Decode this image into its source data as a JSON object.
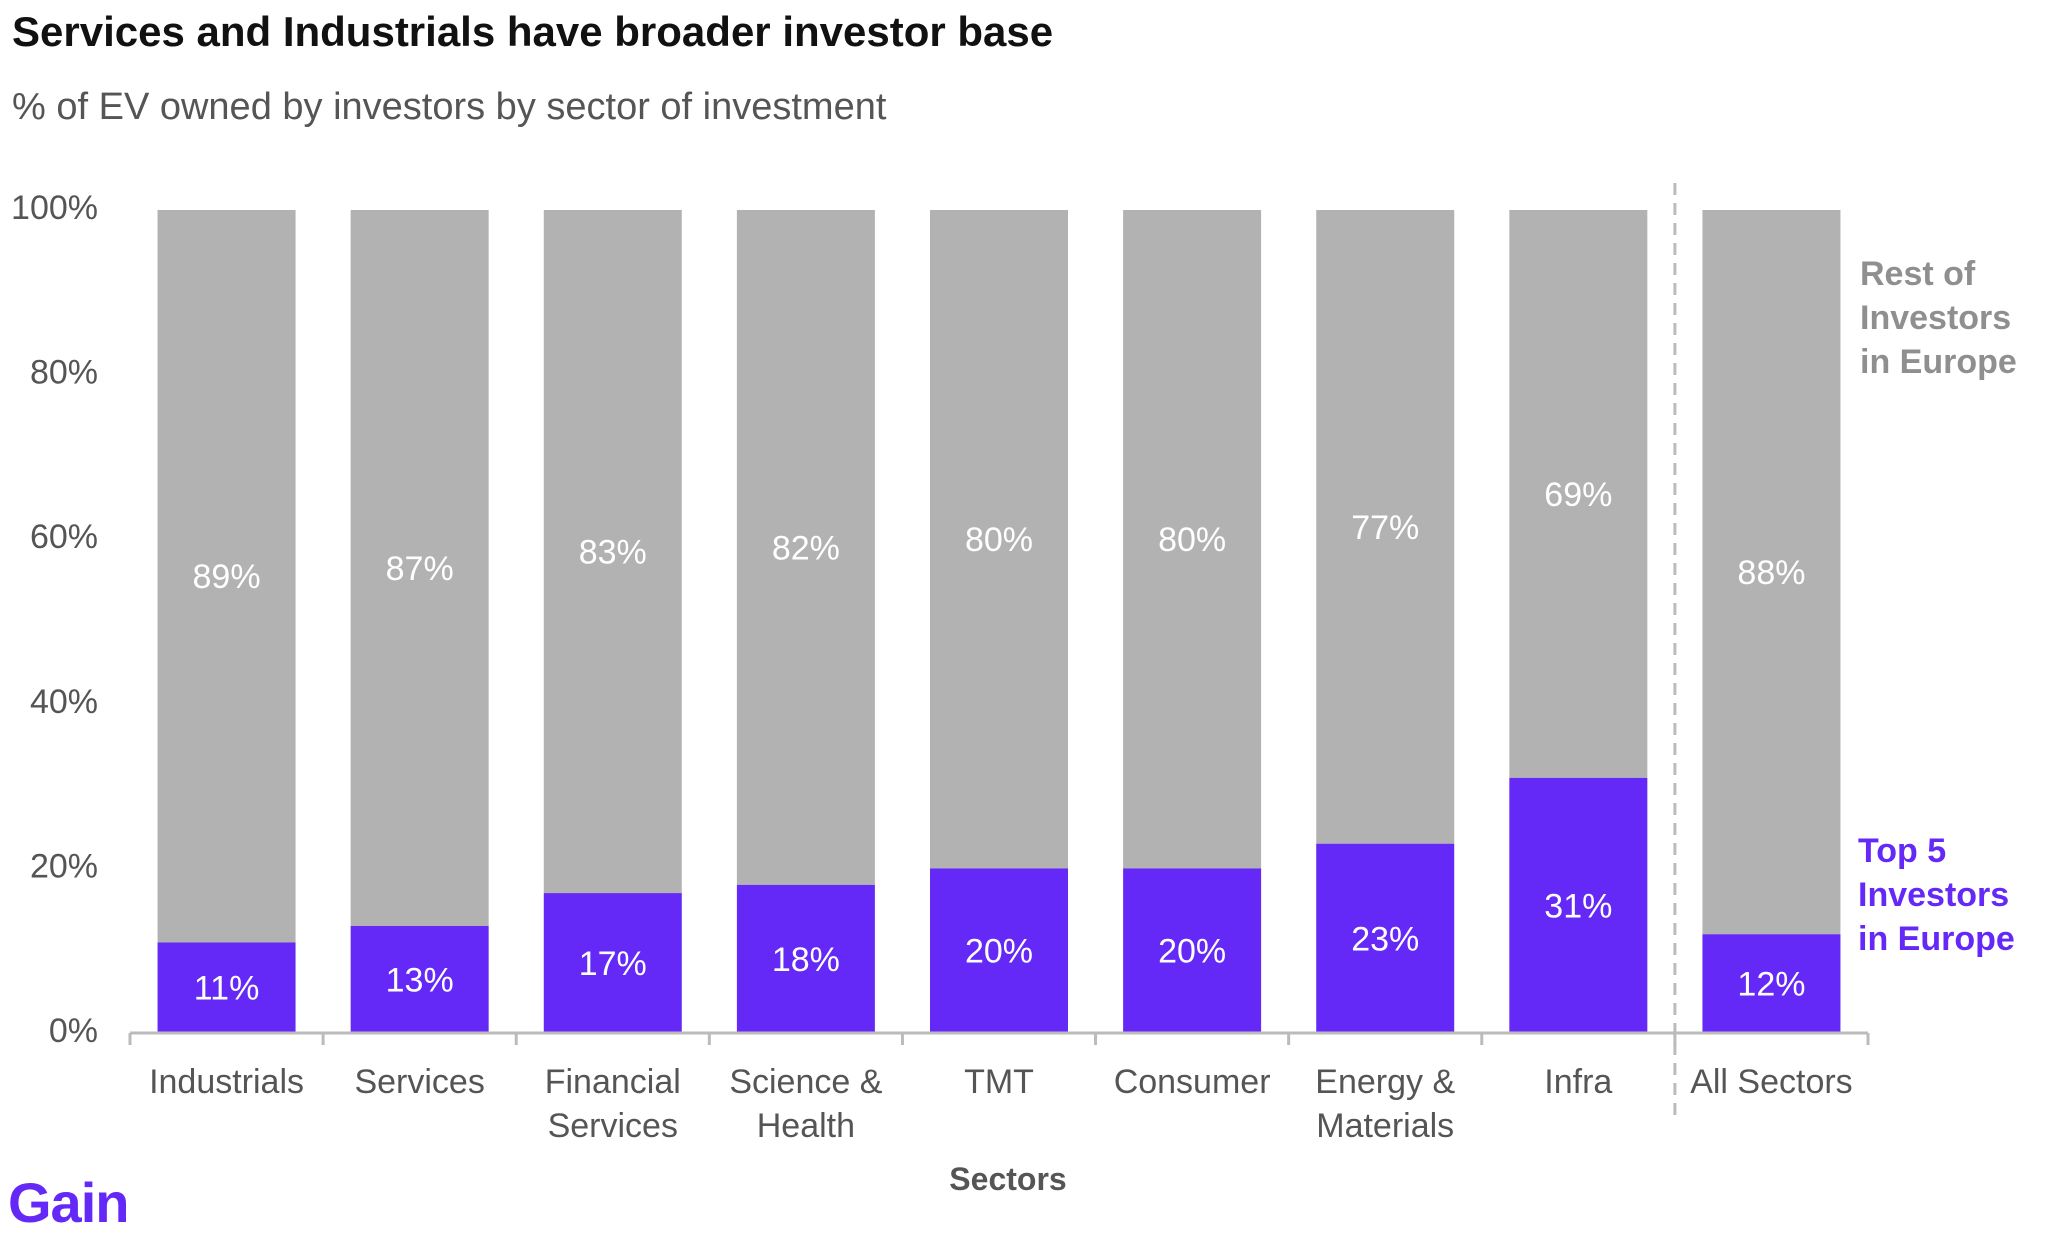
{
  "title": "Services and Industrials have broader investor base",
  "subtitle": "% of EV owned by investors by sector of investment",
  "brand": "Gain",
  "colors": {
    "top": "#6428f7",
    "rest": "#b1b2b1",
    "axis": "#bbbbbb",
    "tick_text": "#555555",
    "legend_rest": "#8f8f8f"
  },
  "chart_data": {
    "type": "bar",
    "stacked": true,
    "orientation": "vertical",
    "xlabel": "Sectors",
    "ylabel": "",
    "ylim": [
      0,
      100
    ],
    "y_ticks": [
      "0%",
      "20%",
      "40%",
      "60%",
      "80%",
      "100%"
    ],
    "grid": false,
    "legend_placement": "right",
    "categories": [
      [
        "Industrials"
      ],
      [
        "Services"
      ],
      [
        "Financial",
        "Services"
      ],
      [
        "Science &",
        "Health"
      ],
      [
        "TMT"
      ],
      [
        "Consumer"
      ],
      [
        "Energy &",
        "Materials"
      ],
      [
        "Infra"
      ],
      [
        "All Sectors"
      ]
    ],
    "series": [
      {
        "name": "Top 5 Investors in Europe",
        "legend_lines": [
          "Top 5",
          "Investors",
          "in Europe"
        ],
        "values": [
          11,
          13,
          17,
          18,
          20,
          20,
          23,
          31,
          12
        ],
        "labels": [
          "11%",
          "13%",
          "17%",
          "18%",
          "20%",
          "20%",
          "23%",
          "31%",
          "12%"
        ]
      },
      {
        "name": "Rest of Investors in Europe",
        "legend_lines": [
          "Rest of",
          "Investors",
          "in Europe"
        ],
        "values": [
          89,
          87,
          83,
          82,
          80,
          80,
          77,
          69,
          88
        ],
        "labels": [
          "89%",
          "87%",
          "83%",
          "82%",
          "80%",
          "80%",
          "77%",
          "69%",
          "88%"
        ]
      }
    ],
    "separator_before_index": 8,
    "separator_style": "dashed"
  }
}
